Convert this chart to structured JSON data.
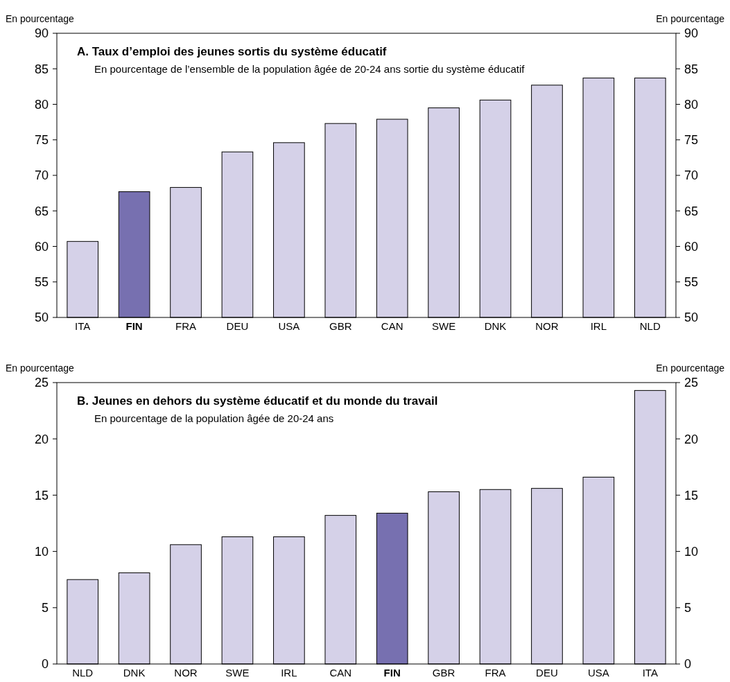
{
  "chart_data": [
    {
      "type": "bar",
      "title": "A. Taux d’emploi des jeunes sortis du système éducatif",
      "subtitle": "En pourcentage de l’ensemble de la population âgée de 20-24 ans sortie du système éducatif",
      "ylabel": "En pourcentage",
      "y2label": "En pourcentage",
      "categories": [
        "ITA",
        "FIN",
        "FRA",
        "DEU",
        "USA",
        "GBR",
        "CAN",
        "SWE",
        "DNK",
        "NOR",
        "IRL",
        "NLD"
      ],
      "values": [
        60.7,
        67.7,
        68.3,
        73.3,
        74.6,
        77.3,
        77.9,
        79.5,
        80.6,
        82.7,
        83.7,
        83.7
      ],
      "colors": [
        "#d5d1e8",
        "#7770b0",
        "#d5d1e8",
        "#d5d1e8",
        "#d5d1e8",
        "#d5d1e8",
        "#d5d1e8",
        "#d5d1e8",
        "#d5d1e8",
        "#d5d1e8",
        "#d5d1e8",
        "#d5d1e8"
      ],
      "ylim": [
        50,
        90
      ],
      "yticks": [
        50,
        55,
        60,
        65,
        70,
        75,
        80,
        85,
        90
      ],
      "y2lim": [
        50,
        90
      ],
      "y2ticks": [
        50,
        55,
        60,
        65,
        70,
        75,
        80,
        85,
        90
      ]
    },
    {
      "type": "bar",
      "title": "B. Jeunes en dehors du système éducatif et du monde du travail",
      "subtitle": "En pourcentage de la population âgée de 20-24 ans",
      "ylabel": "En pourcentage",
      "y2label": "En pourcentage",
      "categories": [
        "NLD",
        "DNK",
        "NOR",
        "SWE",
        "IRL",
        "CAN",
        "FIN",
        "GBR",
        "FRA",
        "DEU",
        "USA",
        "ITA"
      ],
      "values": [
        7.5,
        8.1,
        10.6,
        11.3,
        11.3,
        13.2,
        13.4,
        15.3,
        15.5,
        15.6,
        16.6,
        24.3
      ],
      "colors": [
        "#d5d1e8",
        "#d5d1e8",
        "#d5d1e8",
        "#d5d1e8",
        "#d5d1e8",
        "#d5d1e8",
        "#7770b0",
        "#d5d1e8",
        "#d5d1e8",
        "#d5d1e8",
        "#d5d1e8",
        "#d5d1e8"
      ],
      "ylim": [
        0,
        25
      ],
      "yticks": [
        0,
        5,
        10,
        15,
        20,
        25
      ],
      "y2lim": [
        0,
        25
      ],
      "y2ticks": [
        0,
        5,
        10,
        15,
        20,
        25
      ]
    }
  ]
}
